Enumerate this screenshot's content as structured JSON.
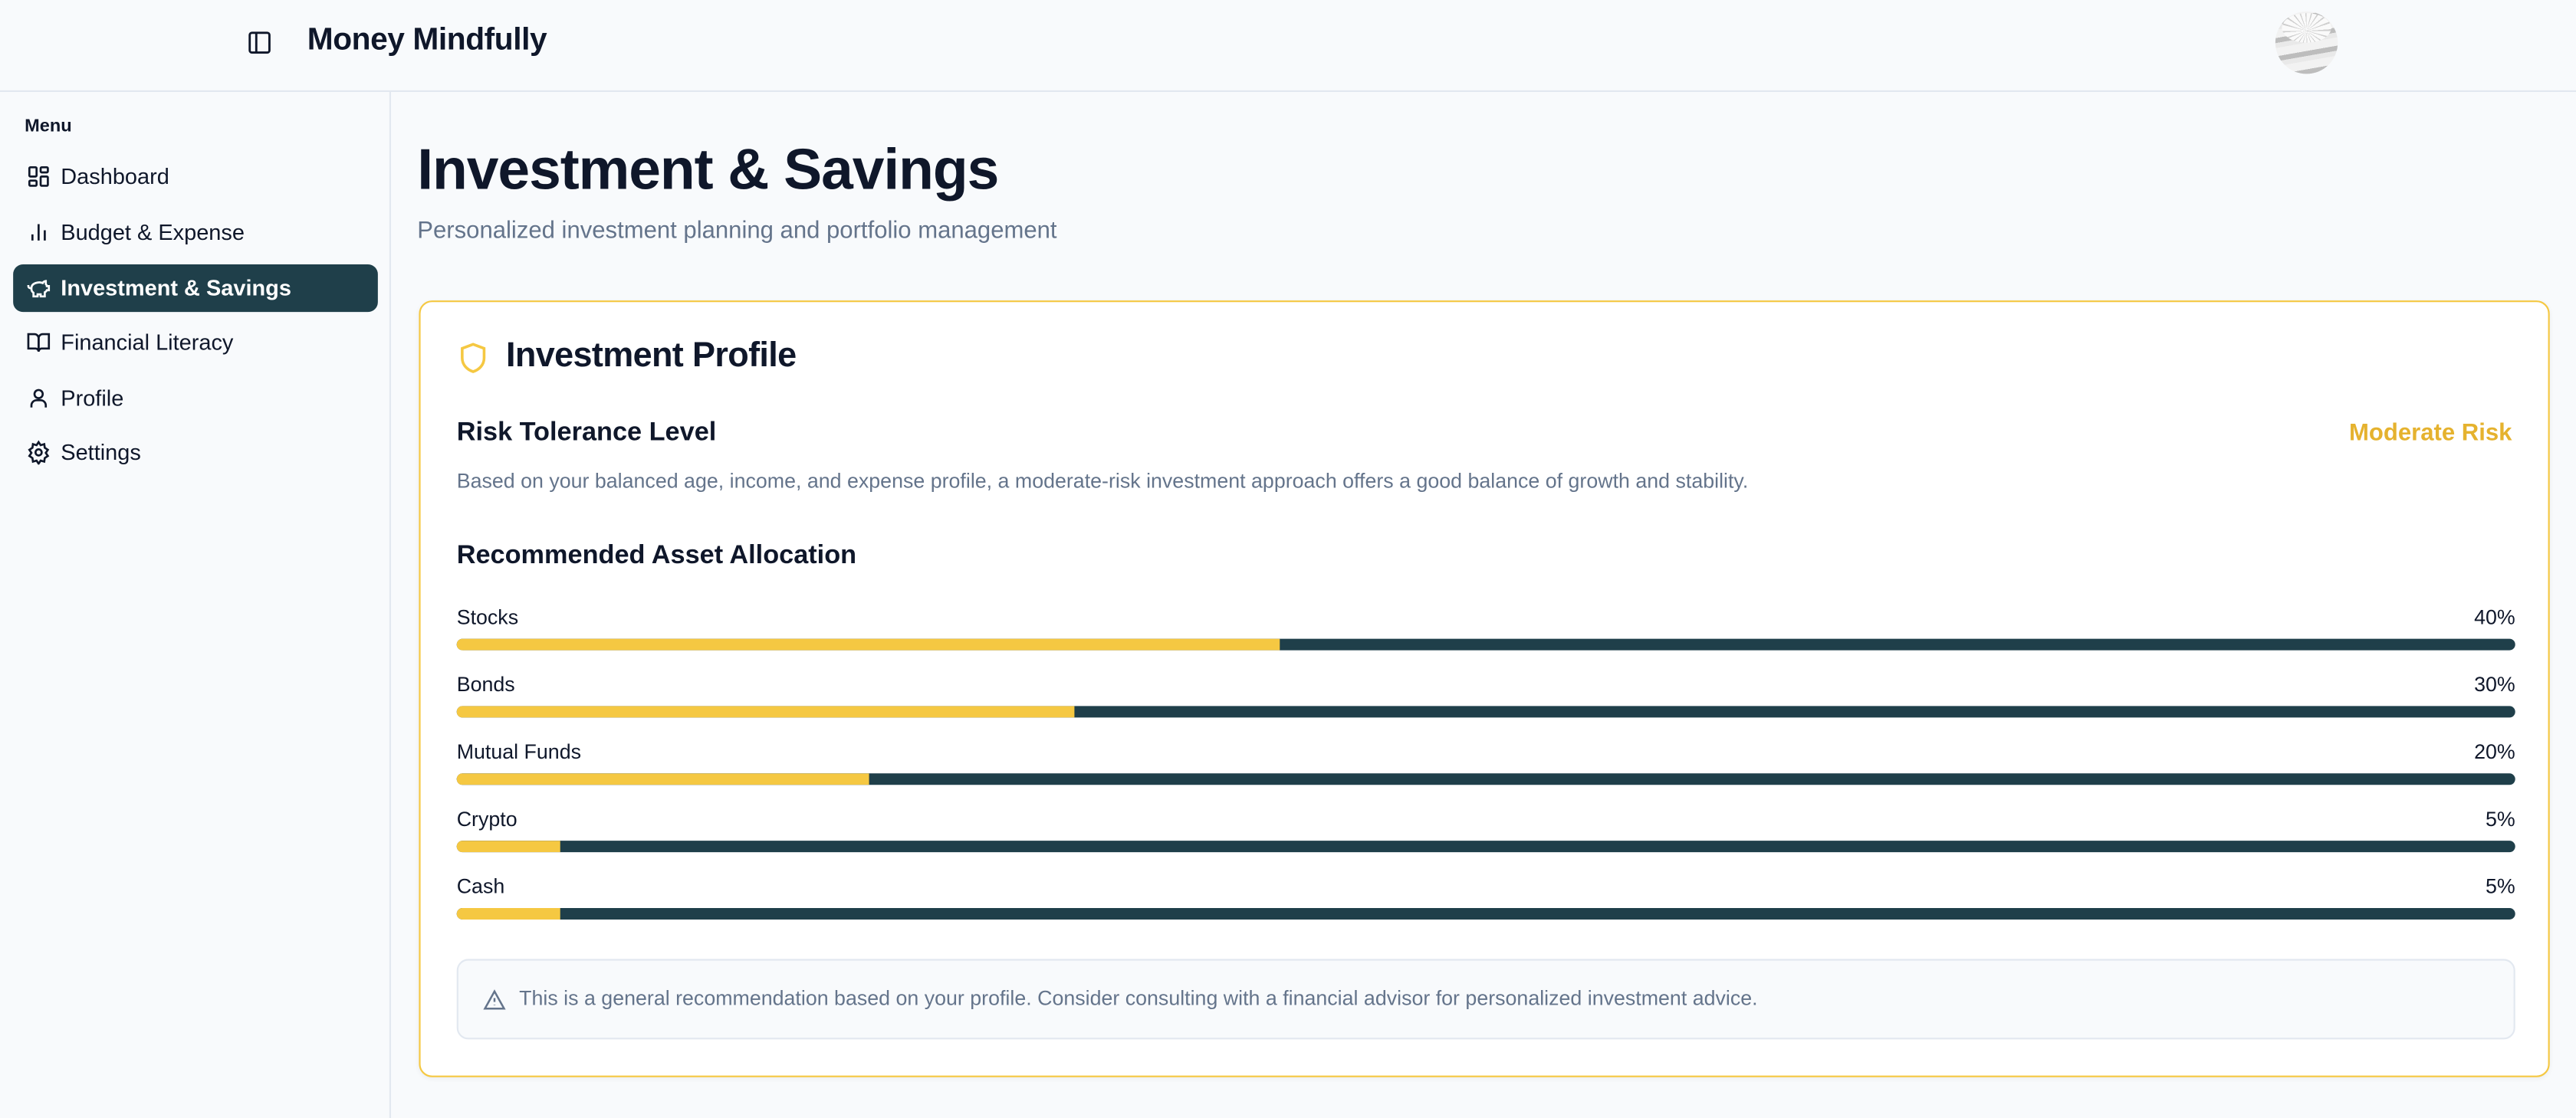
{
  "header": {
    "app_title": "Money Mindfully",
    "sidebar_toggle_icon": "panel-left-icon",
    "avatar_icon": "user-avatar-image"
  },
  "sidebar": {
    "menu_label": "Menu",
    "items": [
      {
        "label": "Dashboard",
        "icon": "dashboard-icon",
        "active": false
      },
      {
        "label": "Budget & Expense",
        "icon": "bar-chart-icon",
        "active": false
      },
      {
        "label": "Investment & Savings",
        "icon": "piggy-bank-icon",
        "active": true
      },
      {
        "label": "Financial Literacy",
        "icon": "book-open-icon",
        "active": false
      },
      {
        "label": "Profile",
        "icon": "user-icon",
        "active": false
      },
      {
        "label": "Settings",
        "icon": "gear-icon",
        "active": false
      }
    ]
  },
  "main": {
    "title": "Investment & Savings",
    "subtitle": "Personalized investment planning and portfolio management",
    "card": {
      "title": "Investment Profile",
      "icon": "shield-icon",
      "risk_title": "Risk Tolerance Level",
      "risk_value": "Moderate Risk",
      "risk_description": "Based on your balanced age, income, and expense profile, a moderate-risk investment approach offers a good balance of growth and stability.",
      "allocation_title": "Recommended Asset Allocation",
      "allocations": [
        {
          "label": "Stocks",
          "percent_label": "40%",
          "percent": 40
        },
        {
          "label": "Bonds",
          "percent_label": "30%",
          "percent": 30
        },
        {
          "label": "Mutual Funds",
          "percent_label": "20%",
          "percent": 20
        },
        {
          "label": "Crypto",
          "percent_label": "5%",
          "percent": 5
        },
        {
          "label": "Cash",
          "percent_label": "5%",
          "percent": 5
        }
      ],
      "note": "This is a general recommendation based on your profile. Consider consulting with a financial advisor for personalized investment advice.",
      "note_icon": "warning-icon"
    }
  },
  "colors": {
    "accent": "#f5c842",
    "primary": "#1f3f4a",
    "risk": "#e5b22e",
    "muted": "#64748b"
  }
}
